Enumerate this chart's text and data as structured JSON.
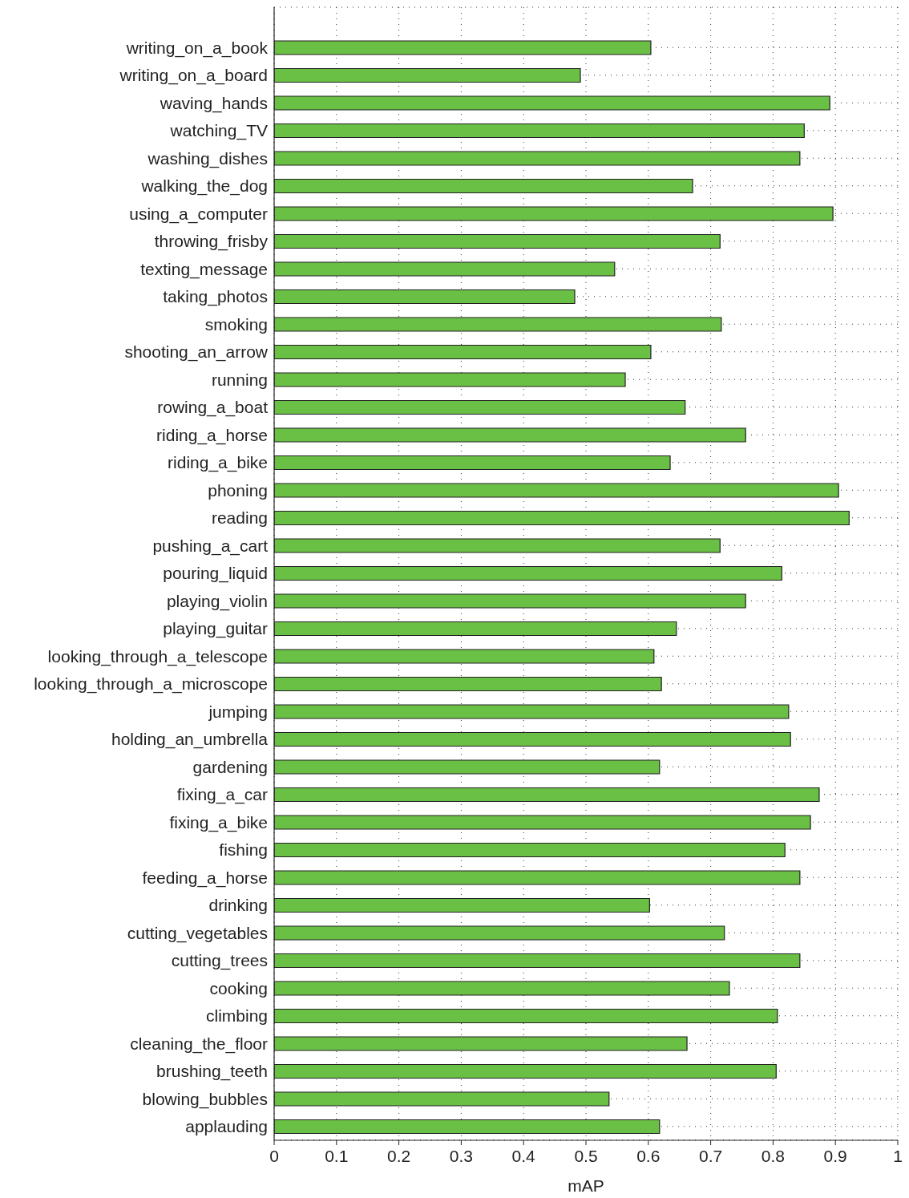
{
  "chart_data": {
    "type": "bar",
    "orientation": "horizontal",
    "xlabel": "mAP",
    "categories": [
      "writing_on_a_book",
      "writing_on_a_board",
      "waving_hands",
      "watching_TV",
      "washing_dishes",
      "walking_the_dog",
      "using_a_computer",
      "throwing_frisby",
      "texting_message",
      "taking_photos",
      "smoking",
      "shooting_an_arrow",
      "running",
      "rowing_a_boat",
      "riding_a_horse",
      "riding_a_bike",
      "phoning",
      "reading",
      "pushing_a_cart",
      "pouring_liquid",
      "playing_violin",
      "playing_guitar",
      "looking_through_a_telescope",
      "looking_through_a_microscope",
      "jumping",
      "holding_an_umbrella",
      "gardening",
      "fixing_a_car",
      "fixing_a_bike",
      "fishing",
      "feeding_a_horse",
      "drinking",
      "cutting_vegetables",
      "cutting_trees",
      "cooking",
      "climbing",
      "cleaning_the_floor",
      "brushing_teeth",
      "blowing_bubbles",
      "applauding"
    ],
    "values": [
      0.604,
      0.491,
      0.891,
      0.85,
      0.843,
      0.671,
      0.896,
      0.715,
      0.546,
      0.482,
      0.717,
      0.604,
      0.563,
      0.659,
      0.756,
      0.635,
      0.905,
      0.922,
      0.715,
      0.814,
      0.756,
      0.645,
      0.609,
      0.621,
      0.825,
      0.828,
      0.618,
      0.874,
      0.86,
      0.819,
      0.843,
      0.602,
      0.722,
      0.843,
      0.73,
      0.807,
      0.662,
      0.805,
      0.537,
      0.618
    ],
    "color": "#6abf45",
    "xlim": [
      0,
      1
    ],
    "xticks": [
      0,
      0.1,
      0.2,
      0.3,
      0.4,
      0.5,
      0.6,
      0.7,
      0.8,
      0.9,
      1
    ],
    "grid": true
  }
}
